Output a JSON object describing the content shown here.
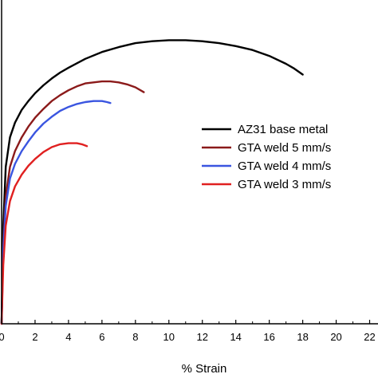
{
  "chart_data": {
    "type": "line",
    "title": "",
    "xlabel": "% Strain",
    "ylabel": "",
    "xlim": [
      0,
      22.5
    ],
    "ylim": [
      0,
      330
    ],
    "xticks": [
      0,
      2,
      4,
      6,
      8,
      10,
      12,
      14,
      16,
      18,
      20,
      22
    ],
    "grid": false,
    "legend_position": "right",
    "series": [
      {
        "name": "AZ31 base metal",
        "color": "#000000",
        "x": [
          0,
          0.1,
          0.25,
          0.5,
          0.8,
          1.2,
          1.6,
          2.0,
          2.5,
          3.0,
          3.5,
          4.0,
          5.0,
          6.0,
          7.0,
          8.0,
          9.0,
          10.0,
          11.0,
          12.0,
          13.0,
          14.0,
          15.0,
          16.0,
          17.0,
          17.5,
          18.0
        ],
        "y": [
          0,
          100,
          160,
          190,
          205,
          218,
          227,
          235,
          243,
          250,
          256,
          261,
          270,
          277,
          282,
          286,
          288,
          289,
          289,
          288,
          286,
          283,
          279,
          273,
          265,
          260,
          254
        ]
      },
      {
        "name": "GTA weld 5 mm/s",
        "color": "#8B1A1A",
        "x": [
          0,
          0.1,
          0.25,
          0.5,
          0.8,
          1.2,
          1.6,
          2.0,
          2.5,
          3.0,
          3.5,
          4.0,
          4.5,
          5.0,
          5.5,
          6.0,
          6.5,
          7.0,
          7.5,
          8.0,
          8.5
        ],
        "y": [
          0,
          80,
          130,
          160,
          176,
          190,
          201,
          210,
          219,
          227,
          233,
          238,
          242,
          245,
          246,
          247,
          247,
          246,
          244,
          241,
          236
        ]
      },
      {
        "name": "GTA weld 4 mm/s",
        "color": "#3A55E0",
        "x": [
          0,
          0.1,
          0.25,
          0.5,
          0.8,
          1.2,
          1.6,
          2.0,
          2.5,
          3.0,
          3.5,
          4.0,
          4.5,
          5.0,
          5.5,
          6.0,
          6.3,
          6.5
        ],
        "y": [
          0,
          75,
          120,
          148,
          163,
          176,
          186,
          195,
          204,
          211,
          217,
          221,
          224,
          226,
          227,
          227,
          226,
          225
        ]
      },
      {
        "name": "GTA weld 3 mm/s",
        "color": "#E02020",
        "x": [
          0,
          0.1,
          0.25,
          0.5,
          0.8,
          1.2,
          1.6,
          2.0,
          2.5,
          3.0,
          3.5,
          4.0,
          4.5,
          4.8,
          5.1
        ],
        "y": [
          0,
          60,
          100,
          125,
          140,
          152,
          161,
          168,
          175,
          180,
          183,
          184,
          184,
          183,
          181
        ]
      }
    ]
  }
}
